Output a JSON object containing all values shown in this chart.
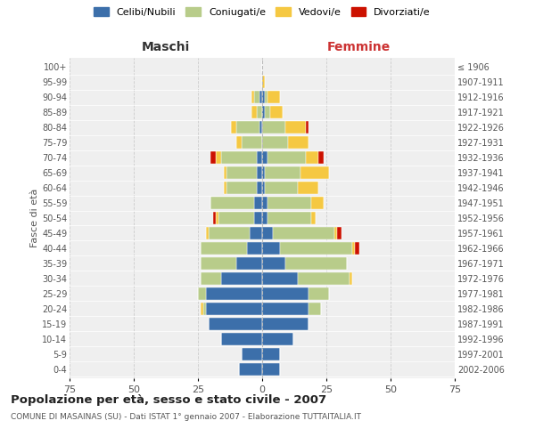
{
  "age_groups": [
    "0-4",
    "5-9",
    "10-14",
    "15-19",
    "20-24",
    "25-29",
    "30-34",
    "35-39",
    "40-44",
    "45-49",
    "50-54",
    "55-59",
    "60-64",
    "65-69",
    "70-74",
    "75-79",
    "80-84",
    "85-89",
    "90-94",
    "95-99",
    "100+"
  ],
  "birth_years": [
    "2002-2006",
    "1997-2001",
    "1992-1996",
    "1987-1991",
    "1982-1986",
    "1977-1981",
    "1972-1976",
    "1967-1971",
    "1962-1966",
    "1957-1961",
    "1952-1956",
    "1947-1951",
    "1942-1946",
    "1937-1941",
    "1932-1936",
    "1927-1931",
    "1922-1926",
    "1917-1921",
    "1912-1916",
    "1907-1911",
    "≤ 1906"
  ],
  "male_celibe": [
    9,
    8,
    16,
    21,
    22,
    22,
    16,
    10,
    6,
    5,
    3,
    3,
    2,
    2,
    2,
    0,
    1,
    0,
    1,
    0,
    0
  ],
  "male_coniugato": [
    0,
    0,
    0,
    0,
    1,
    3,
    8,
    14,
    18,
    16,
    14,
    17,
    12,
    12,
    14,
    8,
    9,
    2,
    2,
    0,
    0
  ],
  "male_vedovo": [
    0,
    0,
    0,
    0,
    1,
    0,
    0,
    0,
    0,
    1,
    1,
    0,
    1,
    1,
    2,
    2,
    2,
    2,
    1,
    0,
    0
  ],
  "male_divorziato": [
    0,
    0,
    0,
    0,
    0,
    0,
    0,
    0,
    0,
    0,
    1,
    0,
    0,
    0,
    2,
    0,
    0,
    0,
    0,
    0,
    0
  ],
  "female_celibe": [
    7,
    7,
    12,
    18,
    18,
    18,
    14,
    9,
    7,
    4,
    2,
    2,
    1,
    1,
    2,
    0,
    0,
    1,
    1,
    0,
    0
  ],
  "female_coniugato": [
    0,
    0,
    0,
    0,
    5,
    8,
    20,
    24,
    28,
    24,
    17,
    17,
    13,
    14,
    15,
    10,
    9,
    2,
    1,
    0,
    0
  ],
  "female_vedovo": [
    0,
    0,
    0,
    0,
    0,
    0,
    1,
    0,
    1,
    1,
    2,
    5,
    8,
    11,
    5,
    8,
    8,
    5,
    5,
    1,
    0
  ],
  "female_divorziato": [
    0,
    0,
    0,
    0,
    0,
    0,
    0,
    0,
    2,
    2,
    0,
    0,
    0,
    0,
    2,
    0,
    1,
    0,
    0,
    0,
    0
  ],
  "colors": {
    "celibe": "#3c6faa",
    "coniugato": "#b8cc8a",
    "vedovo": "#f5c842",
    "divorziato": "#cc1100"
  },
  "title": "Popolazione per età, sesso e stato civile - 2007",
  "subtitle": "COMUNE DI MASAINAS (SU) - Dati ISTAT 1° gennaio 2007 - Elaborazione TUTTAITALIA.IT",
  "xlabel_left": "Maschi",
  "xlabel_right": "Femmine",
  "ylabel_left": "Fasce di età",
  "xlim": 75,
  "background_color": "#ffffff",
  "plot_bg_color": "#efefef",
  "grid_color": "#cccccc"
}
